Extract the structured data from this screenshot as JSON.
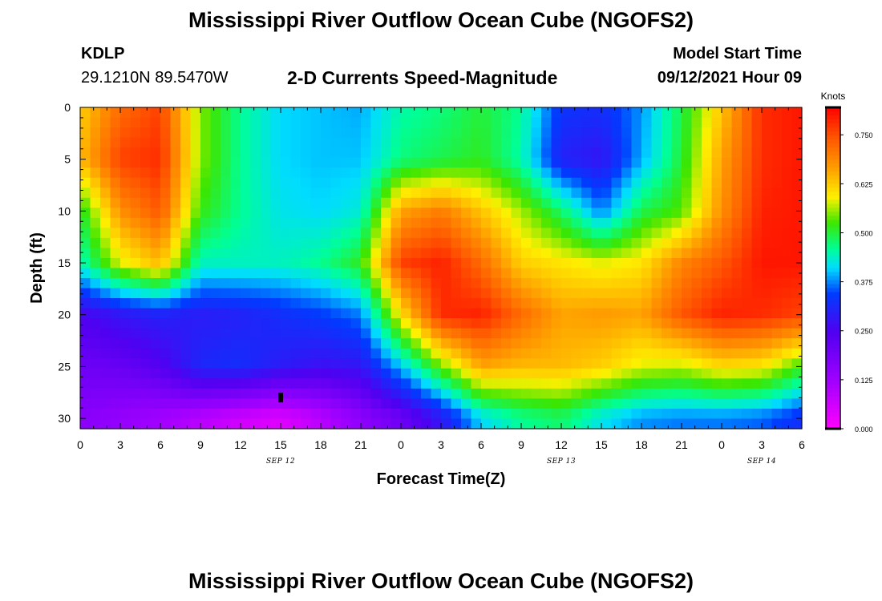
{
  "header": {
    "title": "Mississippi River Outflow Ocean Cube (NGOFS2)",
    "station": "KDLP",
    "coords": "29.1210N  89.5470W",
    "subtitle": "2-D Currents Speed-Magnitude",
    "model_label": "Model Start Time",
    "model_time": "09/12/2021 Hour 09"
  },
  "footer": {
    "title": "Mississippi River Outflow Ocean Cube (NGOFS2)"
  },
  "chart_data": {
    "type": "heatmap",
    "xlabel": "Forecast Time(Z)",
    "ylabel": "Depth (ft)",
    "x_range_hours": [
      0,
      54
    ],
    "y_range_ft": [
      0,
      31
    ],
    "x_tick_labels": [
      "0",
      "3",
      "6",
      "9",
      "12",
      "15",
      "18",
      "21",
      "0",
      "3",
      "6",
      "9",
      "12",
      "15",
      "18",
      "21",
      "0",
      "3",
      "6"
    ],
    "y_tick_labels": [
      "0",
      "5",
      "10",
      "15",
      "20",
      "25",
      "30"
    ],
    "y_tick_values": [
      0,
      5,
      10,
      15,
      20,
      25,
      30
    ],
    "day_labels": [
      {
        "label": "SEP 12",
        "hour": 15
      },
      {
        "label": "SEP 13",
        "hour": 36
      },
      {
        "label": "SEP 14",
        "hour": 51
      }
    ],
    "colorbar": {
      "title": "Knots",
      "min": 0.0,
      "max": 0.82,
      "tick_labels": [
        "0.000",
        "0.125",
        "0.250",
        "0.375",
        "0.500",
        "0.625",
        "0.750"
      ],
      "tick_values": [
        0.0,
        0.125,
        0.25,
        0.375,
        0.5,
        0.625,
        0.75
      ]
    },
    "marker": {
      "hour": 15,
      "depth_ft": 28
    },
    "anchors_hours": [
      0,
      3,
      6,
      9,
      12,
      15,
      18,
      21,
      24,
      27,
      30,
      33,
      36,
      39,
      42,
      45,
      48,
      51,
      54
    ],
    "anchors_depth_ft": [
      0,
      5,
      10,
      15,
      20,
      25,
      30
    ],
    "speed_grid_knots": [
      [
        0.62,
        0.72,
        0.76,
        0.55,
        0.46,
        0.41,
        0.4,
        0.39,
        0.45,
        0.47,
        0.5,
        0.46,
        0.33,
        0.32,
        0.38,
        0.49,
        0.63,
        0.78,
        0.8
      ],
      [
        0.64,
        0.76,
        0.78,
        0.55,
        0.46,
        0.41,
        0.4,
        0.4,
        0.47,
        0.49,
        0.51,
        0.45,
        0.3,
        0.28,
        0.39,
        0.5,
        0.66,
        0.78,
        0.8
      ],
      [
        0.5,
        0.68,
        0.74,
        0.52,
        0.46,
        0.42,
        0.41,
        0.43,
        0.66,
        0.7,
        0.63,
        0.56,
        0.48,
        0.37,
        0.49,
        0.53,
        0.68,
        0.79,
        0.8
      ],
      [
        0.44,
        0.58,
        0.64,
        0.44,
        0.44,
        0.44,
        0.46,
        0.51,
        0.76,
        0.79,
        0.72,
        0.62,
        0.6,
        0.58,
        0.6,
        0.69,
        0.74,
        0.8,
        0.8
      ],
      [
        0.25,
        0.28,
        0.3,
        0.29,
        0.3,
        0.32,
        0.34,
        0.37,
        0.6,
        0.78,
        0.79,
        0.72,
        0.66,
        0.67,
        0.66,
        0.74,
        0.79,
        0.78,
        0.76
      ],
      [
        0.2,
        0.21,
        0.24,
        0.31,
        0.32,
        0.29,
        0.27,
        0.28,
        0.4,
        0.54,
        0.66,
        0.64,
        0.64,
        0.62,
        0.58,
        0.57,
        0.61,
        0.6,
        0.52
      ],
      [
        0.16,
        0.14,
        0.12,
        0.09,
        0.06,
        0.04,
        0.09,
        0.15,
        0.2,
        0.28,
        0.41,
        0.46,
        0.48,
        0.42,
        0.38,
        0.37,
        0.37,
        0.36,
        0.32
      ]
    ]
  }
}
